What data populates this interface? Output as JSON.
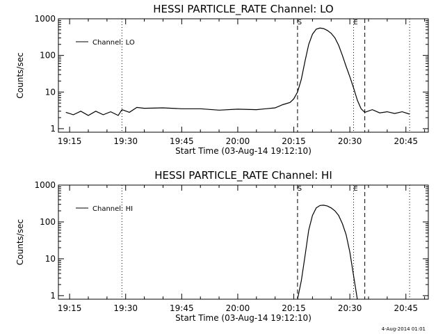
{
  "footer": {
    "timestamp": "4-Aug-2014 01:01"
  },
  "chart_data": [
    {
      "type": "line",
      "title": "HESSI PARTICLE_RATE Channel: LO",
      "xlabel": "Start Time (03-Aug-14 19:12:10)",
      "ylabel": "Counts/sec",
      "y_scale": "log",
      "xlim": [
        "19:12",
        "20:51"
      ],
      "ylim": [
        0.8,
        1000
      ],
      "x_ticks": [
        "19:15",
        "19:30",
        "19:45",
        "20:00",
        "20:15",
        "20:30",
        "20:45"
      ],
      "y_ticks": [
        {
          "value": 1,
          "label": "1"
        },
        {
          "value": 10,
          "label": "10"
        },
        {
          "value": 100,
          "label": "100"
        },
        {
          "value": 1000,
          "label": "1000"
        }
      ],
      "legend": {
        "position": "top-left",
        "entries": [
          "Channel: LO"
        ]
      },
      "markers": [
        {
          "x": "20:16",
          "style": "dashed",
          "label": "S"
        },
        {
          "x": "20:31",
          "style": "dotted",
          "label": "E"
        },
        {
          "x": "20:34",
          "style": "dashed",
          "label": ""
        },
        {
          "x": "19:29",
          "style": "dotted",
          "label": ""
        },
        {
          "x": "20:46",
          "style": "dotted",
          "label": ""
        }
      ],
      "series": [
        {
          "name": "Channel: LO",
          "x": [
            "19:14",
            "19:16",
            "19:18",
            "19:20",
            "19:22",
            "19:24",
            "19:26",
            "19:28",
            "19:29",
            "19:31",
            "19:33",
            "19:35",
            "19:40",
            "19:45",
            "19:50",
            "19:55",
            "20:00",
            "20:05",
            "20:10",
            "20:12",
            "20:14",
            "20:15",
            "20:16",
            "20:17",
            "20:18",
            "20:19",
            "20:20",
            "20:21",
            "20:22",
            "20:23",
            "20:24",
            "20:25",
            "20:26",
            "20:27",
            "20:28",
            "20:29",
            "20:30",
            "20:31",
            "20:32",
            "20:33",
            "20:34",
            "20:36",
            "20:38",
            "20:40",
            "20:42",
            "20:44",
            "20:46"
          ],
          "values": [
            2.8,
            2.4,
            3.0,
            2.3,
            3.0,
            2.4,
            2.9,
            2.3,
            3.3,
            2.8,
            3.8,
            3.6,
            3.7,
            3.5,
            3.5,
            3.2,
            3.4,
            3.3,
            3.7,
            4.5,
            5.2,
            6.5,
            10,
            22,
            70,
            200,
            380,
            520,
            560,
            540,
            480,
            400,
            300,
            190,
            100,
            50,
            26,
            13,
            6,
            3.5,
            2.8,
            3.3,
            2.7,
            2.9,
            2.6,
            2.9,
            2.5
          ]
        }
      ]
    },
    {
      "type": "line",
      "title": "HESSI PARTICLE_RATE Channel: HI",
      "xlabel": "Start Time (03-Aug-14 19:12:10)",
      "ylabel": "Counts/sec",
      "y_scale": "log",
      "xlim": [
        "19:12",
        "20:51"
      ],
      "ylim": [
        0.8,
        1000
      ],
      "x_ticks": [
        "19:15",
        "19:30",
        "19:45",
        "20:00",
        "20:15",
        "20:30",
        "20:45"
      ],
      "y_ticks": [
        {
          "value": 1,
          "label": "1"
        },
        {
          "value": 10,
          "label": "10"
        },
        {
          "value": 100,
          "label": "100"
        },
        {
          "value": 1000,
          "label": "1000"
        }
      ],
      "legend": {
        "position": "top-left",
        "entries": [
          "Channel: HI"
        ]
      },
      "markers": [
        {
          "x": "20:16",
          "style": "dashed",
          "label": "S"
        },
        {
          "x": "20:31",
          "style": "dotted",
          "label": "E"
        },
        {
          "x": "20:34",
          "style": "dashed",
          "label": ""
        },
        {
          "x": "19:29",
          "style": "dotted",
          "label": ""
        },
        {
          "x": "20:46",
          "style": "dotted",
          "label": ""
        }
      ],
      "series": [
        {
          "name": "Channel: HI",
          "x": [
            "20:16",
            "20:17",
            "20:18",
            "20:19",
            "20:20",
            "20:21",
            "20:22",
            "20:23",
            "20:24",
            "20:25",
            "20:26",
            "20:27",
            "20:28",
            "20:29",
            "20:30",
            "20:31",
            "20:32"
          ],
          "values": [
            0.8,
            2.5,
            12,
            60,
            150,
            240,
            280,
            285,
            270,
            240,
            200,
            150,
            90,
            45,
            15,
            3.5,
            0.8
          ]
        }
      ]
    }
  ]
}
